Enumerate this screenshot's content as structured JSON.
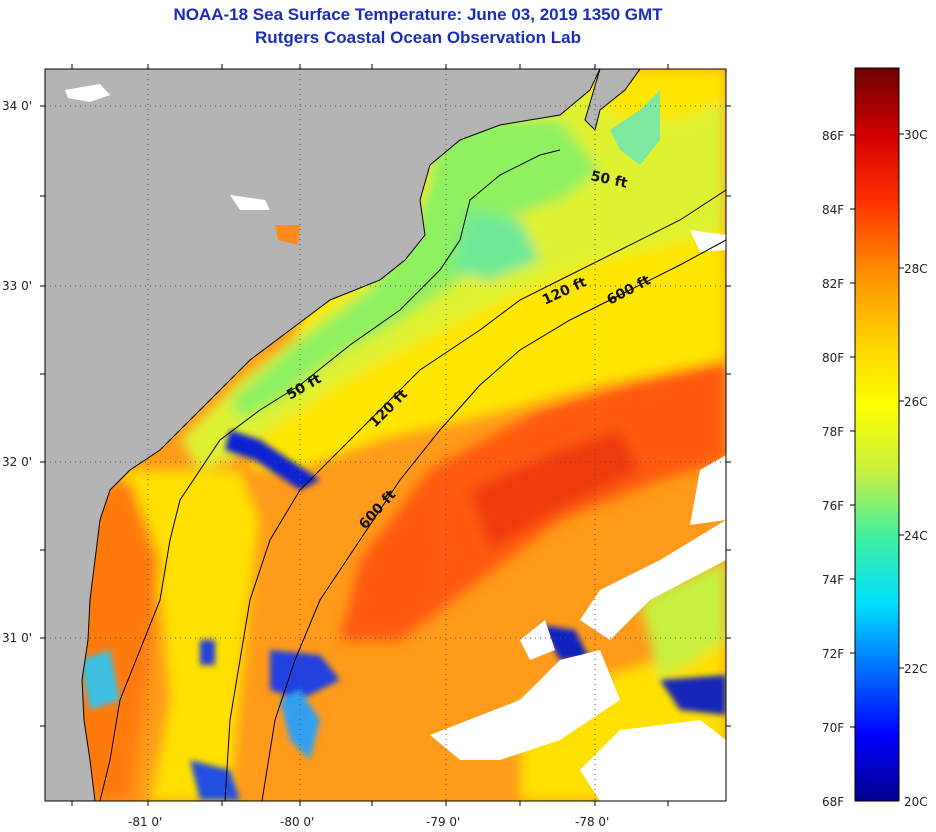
{
  "title": "NOAA-18 Sea Surface Temperature:  June 03, 2019 1350 GMT",
  "subtitle": "Rutgers Coastal Ocean Observation Lab",
  "map": {
    "lat_labels": [
      "34 0'",
      "33 0'",
      "32 0'",
      "31 0'"
    ],
    "lon_labels": [
      "-81 0'",
      "-80 0'",
      "-79 0'",
      "-78 0'"
    ],
    "depth_labels": [
      "50 ft",
      "50 ft",
      "120 ft",
      "120 ft",
      "600 ft",
      "600 ft"
    ],
    "colors": {
      "land": "#b4b4b4",
      "cloud": "#ffffff",
      "coastline": "#000000"
    }
  },
  "colorbar": {
    "f_labels": [
      "86F",
      "84F",
      "82F",
      "80F",
      "78F",
      "76F",
      "74F",
      "72F",
      "70F",
      "68F"
    ],
    "c_labels": [
      "30C",
      "28C",
      "26C",
      "24C",
      "22C",
      "20C"
    ],
    "stops": [
      "#00008b",
      "#0000ff",
      "#0070ff",
      "#00e0ff",
      "#40f0a0",
      "#c8f040",
      "#ffff00",
      "#ffb000",
      "#ff6000",
      "#ff0000",
      "#b00000",
      "#6e0000"
    ]
  }
}
